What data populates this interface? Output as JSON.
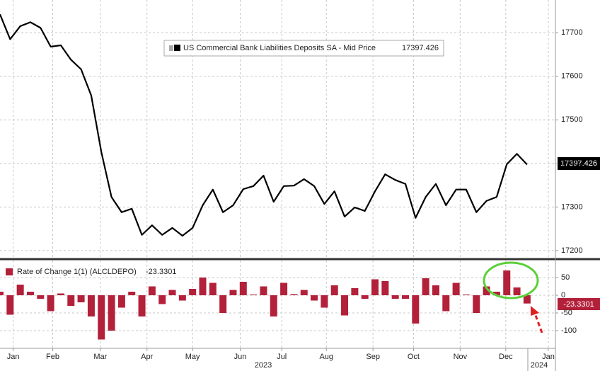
{
  "chart_data": [
    {
      "type": "line",
      "series": [
        {
          "name": "US Commercial Bank Liabilities Deposits SA - Mid Price",
          "color": "#000000",
          "values": [
            17742,
            17685,
            17715,
            17724,
            17711,
            17668,
            17671,
            17638,
            17616,
            17556,
            17426,
            17323,
            17288,
            17296,
            17236,
            17258,
            17236,
            17252,
            17234,
            17252,
            17304,
            17340,
            17288,
            17304,
            17341,
            17348,
            17372,
            17312,
            17348,
            17349,
            17364,
            17348,
            17307,
            17336,
            17278,
            17299,
            17291,
            17336,
            17375,
            17362,
            17353,
            17275,
            17323,
            17353,
            17304,
            17340,
            17340,
            17288,
            17314,
            17323,
            17398,
            17422,
            17397.426
          ]
        }
      ],
      "ylim": [
        17182,
        17775
      ],
      "yticks": [
        17200,
        17300,
        17400,
        17500,
        17600,
        17700
      ],
      "grid": true
    },
    {
      "type": "bar",
      "series": [
        {
          "name": "Rate of Change 1(1) (ALCLDEPO)",
          "color": "#b3203a",
          "values": [
            10,
            -55,
            30,
            10,
            -10,
            -45,
            5,
            -30,
            -20,
            -60,
            -125,
            -100,
            -35,
            10,
            -60,
            25,
            -25,
            15,
            -15,
            18,
            50,
            35,
            -50,
            15,
            38,
            2,
            25,
            -60,
            35,
            3,
            15,
            -15,
            -35,
            28,
            -57,
            20,
            -10,
            45,
            40,
            -10,
            -10,
            -80,
            48,
            28,
            -45,
            35,
            2,
            -50,
            25,
            10,
            70,
            22,
            -23.3301
          ]
        }
      ],
      "ylim": [
        -150,
        98
      ],
      "yticks": [
        50,
        0,
        -50,
        -100
      ],
      "grid": true,
      "xlim": [
        0,
        54.8
      ],
      "xticks": [
        {
          "value": 1.3,
          "label": "Jan"
        },
        {
          "value": 5.2,
          "label": "Feb"
        },
        {
          "value": 9.9,
          "label": "Mar"
        },
        {
          "value": 14.5,
          "label": "Apr"
        },
        {
          "value": 19,
          "label": "May"
        },
        {
          "value": 23.7,
          "label": "Jun"
        },
        {
          "value": 27.8,
          "label": "Jul"
        },
        {
          "value": 32.2,
          "label": "Aug"
        },
        {
          "value": 36.8,
          "label": "Sep"
        },
        {
          "value": 40.8,
          "label": "Oct"
        },
        {
          "value": 45.4,
          "label": "Nov"
        },
        {
          "value": 49.9,
          "label": "Dec"
        },
        {
          "value": 54.1,
          "label": "Jan"
        }
      ],
      "year_labels": [
        "2023",
        "2024"
      ]
    }
  ]
}
